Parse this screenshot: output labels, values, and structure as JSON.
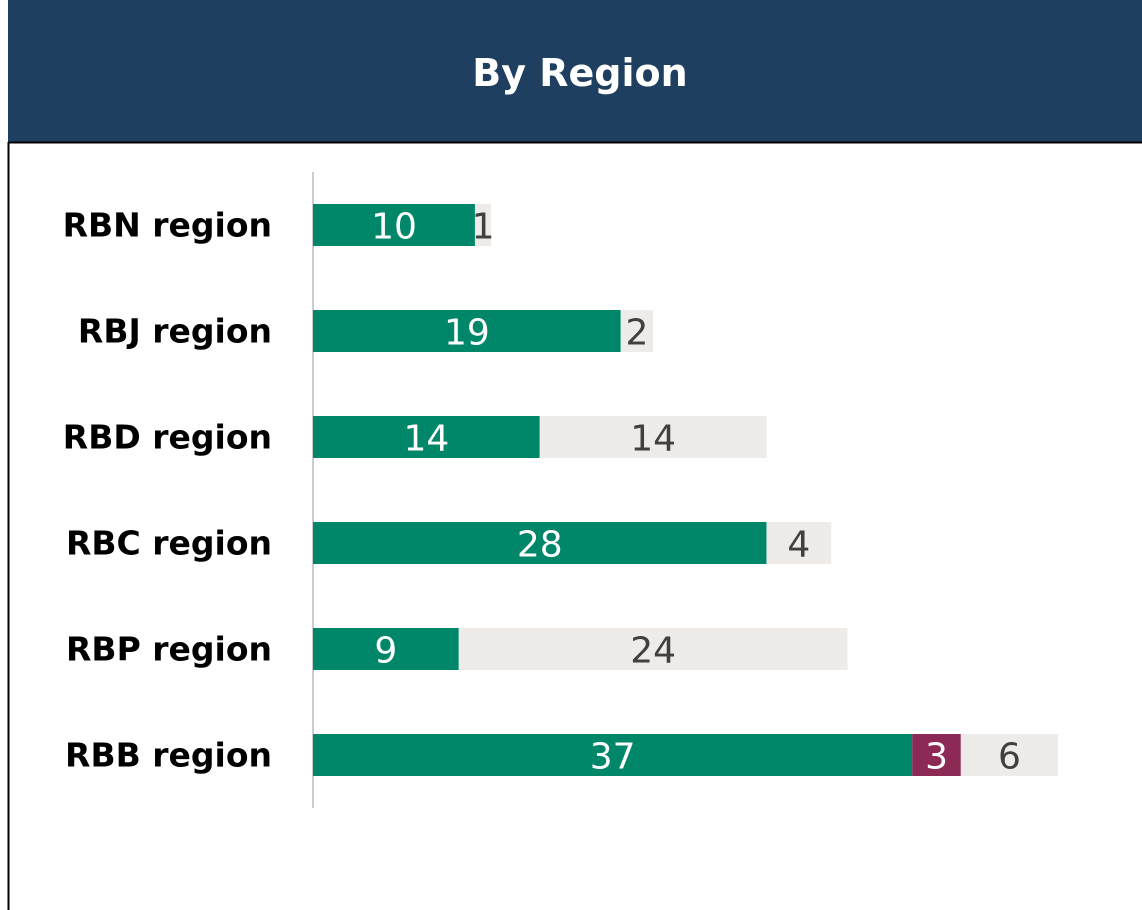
{
  "chart_data": {
    "type": "stacked-bar-horizontal",
    "title": "By Region",
    "categories": [
      "RBN region",
      "RBJ region",
      "RBD region",
      "RBC region",
      "RBP region",
      "RBB region"
    ],
    "series": [
      {
        "color": "#00876a",
        "values": [
          10,
          19,
          14,
          28,
          9,
          37
        ]
      },
      {
        "color": "#8c2a55",
        "values": [
          null,
          null,
          null,
          null,
          null,
          3
        ]
      },
      {
        "color": "#efebe8",
        "values": [
          1,
          2,
          14,
          4,
          24,
          6
        ]
      }
    ],
    "label_colors": [
      "#ffffff",
      "#ffffff",
      "#404040"
    ],
    "xlim": [
      0,
      46
    ]
  }
}
